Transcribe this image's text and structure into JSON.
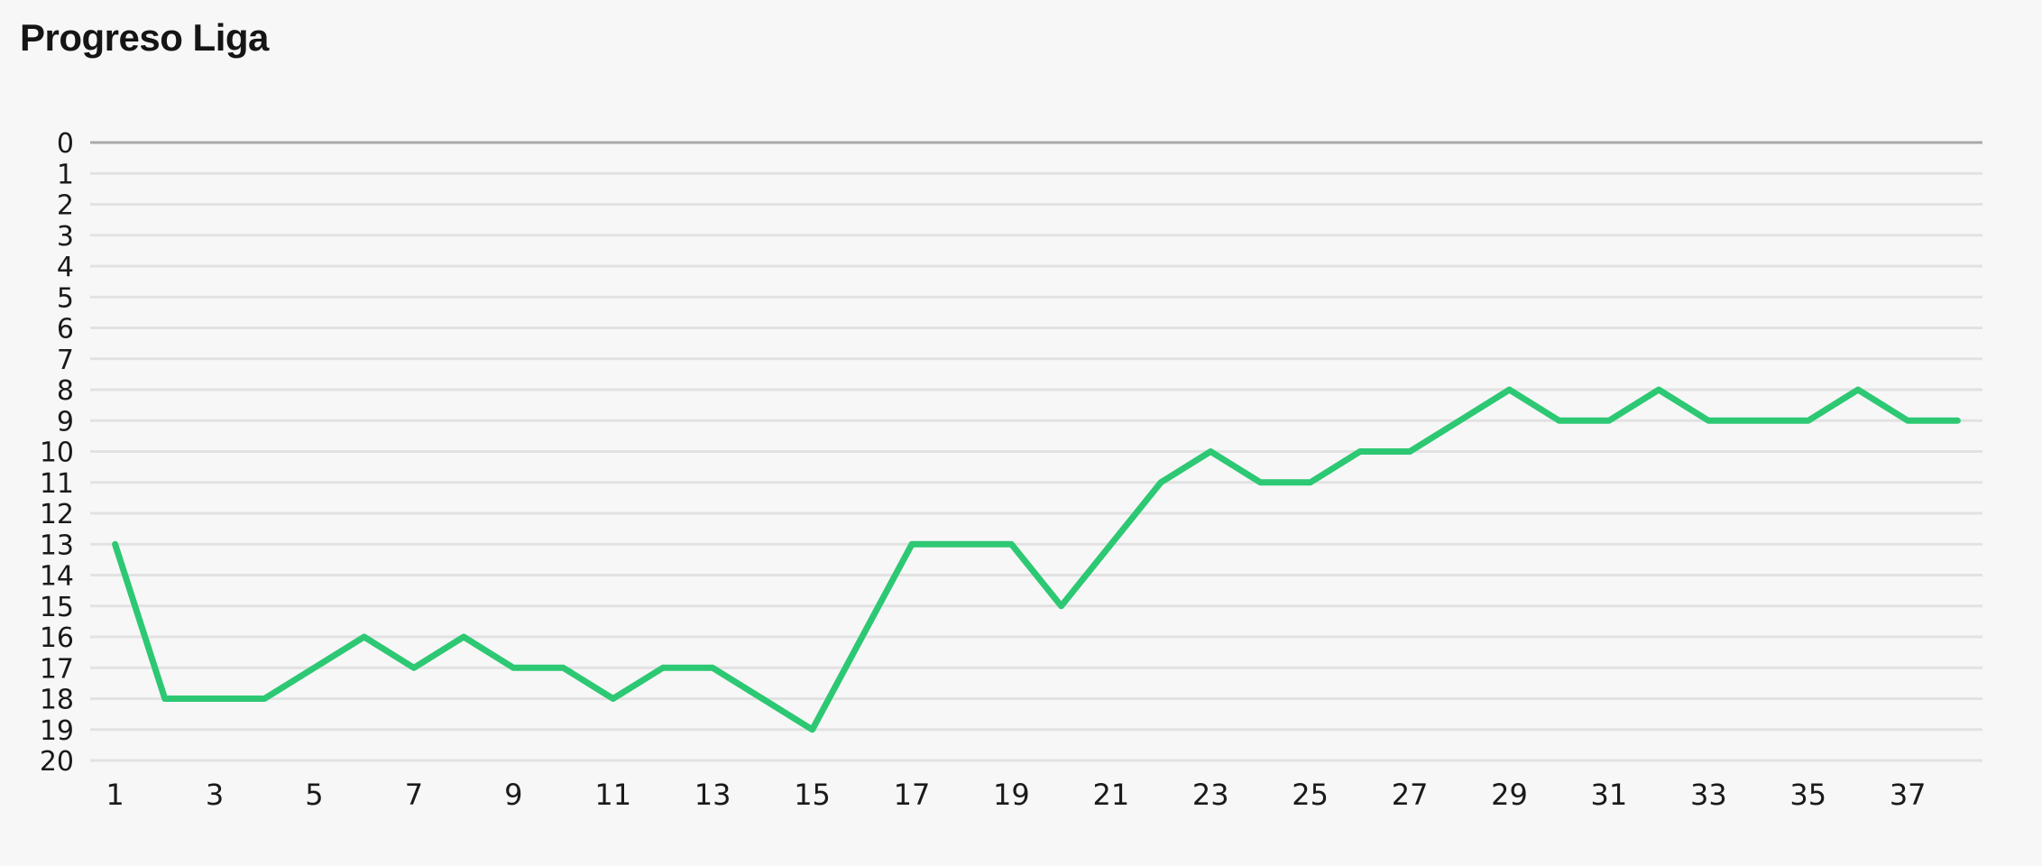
{
  "header": {
    "title": "Progreso Liga"
  },
  "colors": {
    "background": "#F7F7F7",
    "line": "#2DC873",
    "grid": "#E2E2E2",
    "zero_line": "#A9A9A9",
    "text": "#1A1A1A",
    "title_text": "#151515"
  },
  "chart_data": {
    "type": "line",
    "title": "Progreso Liga",
    "xlabel": "",
    "ylabel": "",
    "x": [
      1,
      2,
      3,
      4,
      5,
      6,
      7,
      8,
      9,
      10,
      11,
      12,
      13,
      14,
      15,
      16,
      17,
      18,
      19,
      20,
      21,
      22,
      23,
      24,
      25,
      26,
      27,
      28,
      29,
      30,
      31,
      32,
      33,
      34,
      35,
      36,
      37,
      38
    ],
    "values": [
      13,
      18,
      18,
      18,
      17,
      16,
      17,
      16,
      17,
      17,
      18,
      17,
      17,
      18,
      19,
      16,
      13,
      13,
      13,
      15,
      13,
      11,
      10,
      11,
      11,
      10,
      10,
      9,
      8,
      9,
      9,
      8,
      9,
      9,
      9,
      8,
      9,
      9
    ],
    "x_tick_labels": [
      1,
      3,
      5,
      7,
      9,
      11,
      13,
      15,
      17,
      19,
      21,
      23,
      25,
      27,
      29,
      31,
      33,
      35,
      37
    ],
    "y_ticks": [
      0,
      1,
      2,
      3,
      4,
      5,
      6,
      7,
      8,
      9,
      10,
      11,
      12,
      13,
      14,
      15,
      16,
      17,
      18,
      19,
      20
    ],
    "ylim": [
      0,
      20
    ],
    "y_reversed": true,
    "grid": "horizontal-only",
    "legend": "none",
    "line_color": "#2DC873",
    "line_width": 7
  }
}
